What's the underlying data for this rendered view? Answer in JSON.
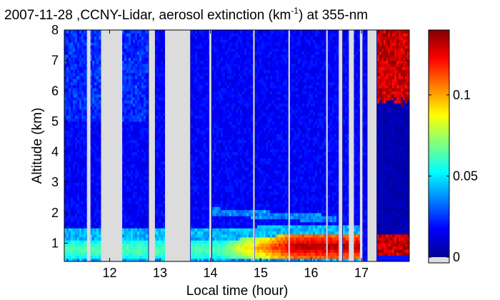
{
  "chart_data": {
    "type": "heatmap",
    "title_main": "2007-11-28 ,CCNY-Lidar, aerosol extinction (km",
    "title_sup": "-1",
    "title_tail": ") at 355-nm",
    "xlabel": "Local time (hour)",
    "ylabel": "Altitude (km)",
    "xlim": [
      11.1,
      17.95
    ],
    "ylim": [
      0.4,
      8
    ],
    "x_ticks": [
      12,
      13,
      14,
      15,
      16,
      17
    ],
    "y_ticks": [
      1,
      2,
      3,
      4,
      5,
      6,
      7,
      8
    ],
    "colorbar": {
      "range": [
        0,
        0.14
      ],
      "ticks": [
        0,
        0.05,
        0.1
      ],
      "tick_labels": [
        "0",
        "0.05",
        "0.1"
      ],
      "colormap": "jet",
      "nodata_color": "#dcdcdc"
    },
    "gaps": [
      [
        11.55,
        11.62
      ],
      [
        11.83,
        12.25
      ],
      [
        12.78,
        12.9
      ],
      [
        13.1,
        13.6
      ],
      [
        13.98,
        14.02
      ],
      [
        14.85,
        14.88
      ],
      [
        15.55,
        15.58
      ],
      [
        16.3,
        16.33
      ],
      [
        16.55,
        16.62
      ],
      [
        16.75,
        16.85
      ],
      [
        16.97,
        17.02
      ],
      [
        17.12,
        17.3
      ]
    ],
    "layers": [
      {
        "name": "boundary-layer",
        "from_x": 11.1,
        "to_x": 16.5,
        "alt_range": [
          0.5,
          1.3
        ],
        "extinction_range": [
          0.06,
          0.13
        ]
      },
      {
        "name": "elevated-aerosol-layer",
        "from_x": 14.0,
        "to_x": 16.5,
        "alt_range": [
          1.7,
          2.2
        ],
        "extinction_range": [
          0.02,
          0.03
        ]
      },
      {
        "name": "cloud-layer",
        "from_x": 17.3,
        "to_x": 17.95,
        "alt_range": [
          5.5,
          8.0
        ],
        "extinction_range": [
          0.12,
          0.14
        ]
      },
      {
        "name": "late-boundary-layer",
        "from_x": 17.3,
        "to_x": 17.95,
        "alt_range": [
          0.6,
          1.3
        ],
        "extinction_range": [
          0.12,
          0.14
        ]
      }
    ]
  }
}
